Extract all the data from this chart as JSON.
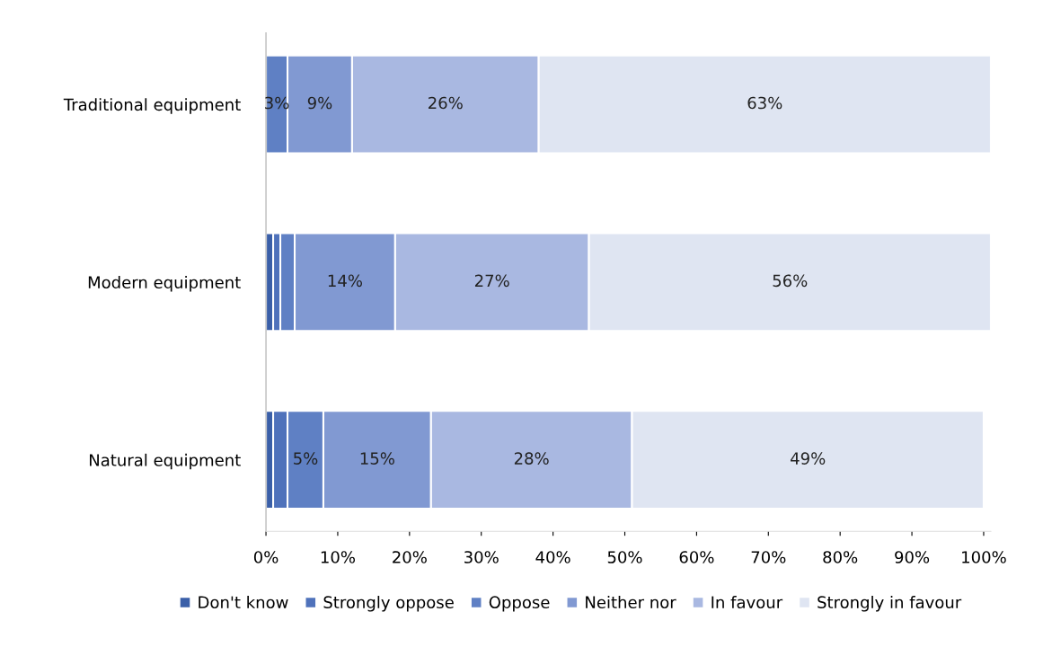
{
  "chart_data": {
    "type": "bar",
    "orientation": "horizontal",
    "stacked": true,
    "categories": [
      "Traditional equipment",
      "Modern equipment",
      "Natural equipment"
    ],
    "series": [
      {
        "name": "Don't know",
        "color": "#3a5fa8",
        "values": [
          0,
          1,
          1
        ],
        "value_labels": [
          null,
          null,
          null
        ]
      },
      {
        "name": "Strongly oppose",
        "color": "#4f72bb",
        "values": [
          0,
          1,
          2
        ],
        "value_labels": [
          null,
          null,
          null
        ]
      },
      {
        "name": "Oppose",
        "color": "#5f80c4",
        "values": [
          3,
          2,
          5
        ],
        "value_labels": [
          "3%",
          null,
          "5%"
        ]
      },
      {
        "name": "Neither nor",
        "color": "#8199d2",
        "values": [
          9,
          14,
          15
        ],
        "value_labels": [
          "9%",
          "14%",
          "15%"
        ]
      },
      {
        "name": "In favour",
        "color": "#a9b8e1",
        "values": [
          26,
          27,
          28
        ],
        "value_labels": [
          "26%",
          "27%",
          "28%"
        ]
      },
      {
        "name": "Strongly in favour",
        "color": "#dfe5f2",
        "values": [
          63,
          56,
          49
        ],
        "value_labels": [
          "63%",
          "56%",
          "49%"
        ]
      }
    ],
    "xlim": [
      0,
      101
    ],
    "xticks": [
      {
        "value": 0,
        "label": "0%"
      },
      {
        "value": 10,
        "label": "10%"
      },
      {
        "value": 20,
        "label": "20%"
      },
      {
        "value": 30,
        "label": "30%"
      },
      {
        "value": 40,
        "label": "40%"
      },
      {
        "value": 50,
        "label": "50%"
      },
      {
        "value": 60,
        "label": "60%"
      },
      {
        "value": 70,
        "label": "70%"
      },
      {
        "value": 80,
        "label": "80%"
      },
      {
        "value": 90,
        "label": "90%"
      },
      {
        "value": 100,
        "label": "100%"
      }
    ],
    "grid": false,
    "legend": "bottom"
  }
}
